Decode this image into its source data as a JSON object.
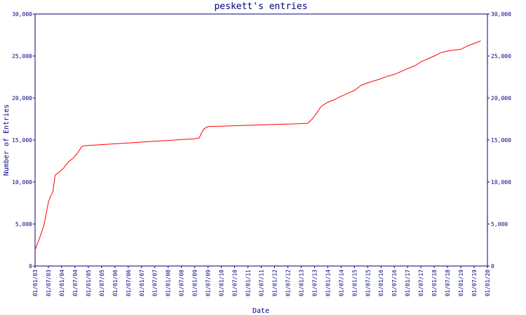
{
  "chart_data": {
    "type": "line",
    "title": "peskett's entries",
    "xlabel": "Date",
    "ylabel": "Number of Entries",
    "ylim": [
      0,
      30000
    ],
    "y_ticks": [
      0,
      5000,
      10000,
      15000,
      20000,
      25000,
      30000
    ],
    "y_tick_labels": [
      "0",
      "5,000",
      "10,000",
      "15,000",
      "20,000",
      "25,000",
      "30,000"
    ],
    "x_tick_labels": [
      "01/01/03",
      "01/07/03",
      "01/01/04",
      "01/07/04",
      "01/01/05",
      "01/07/05",
      "01/01/06",
      "01/07/06",
      "01/01/07",
      "01/07/07",
      "01/01/08",
      "01/07/08",
      "01/01/09",
      "01/07/09",
      "01/01/10",
      "01/07/10",
      "01/01/11",
      "01/07/11",
      "01/01/12",
      "01/07/12",
      "01/01/13",
      "01/07/13",
      "01/01/14",
      "01/07/14",
      "01/01/15",
      "01/07/15",
      "01/01/16",
      "01/07/16",
      "01/01/17",
      "01/07/17",
      "01/01/18",
      "01/07/18",
      "01/01/19",
      "01/07/19",
      "01/01/20"
    ],
    "grid": false,
    "line_color": "#ff0000",
    "axis_color": "#000080",
    "series": [
      {
        "x": [
          "01/01/03",
          "01/03/03",
          "01/05/03",
          "01/07/03",
          "01/08/03",
          "01/09/03",
          "01/10/03",
          "01/12/03",
          "01/02/04",
          "01/04/04",
          "01/06/04",
          "01/08/04",
          "01/10/04",
          "01/11/04",
          "01/01/05",
          "01/07/05",
          "01/01/06",
          "01/07/06",
          "01/01/07",
          "01/07/07",
          "01/01/08",
          "01/07/08",
          "01/01/09",
          "01/03/09",
          "01/05/09",
          "01/07/09",
          "01/01/10",
          "01/07/10",
          "01/01/11",
          "01/07/11",
          "01/01/12",
          "01/07/12",
          "01/01/13",
          "01/04/13",
          "01/06/13",
          "01/08/13",
          "01/10/13",
          "01/01/14",
          "01/04/14",
          "01/07/14",
          "01/01/15",
          "01/04/15",
          "01/07/15",
          "01/01/16",
          "01/04/16",
          "01/07/16",
          "01/01/17",
          "01/04/17",
          "01/07/17",
          "01/01/18",
          "01/04/18",
          "01/07/18",
          "01/01/19",
          "01/04/19",
          "01/07/19",
          "01/10/19"
        ],
        "y": [
          1900,
          3300,
          4800,
          7600,
          8300,
          8800,
          10800,
          11200,
          11700,
          12400,
          12800,
          13400,
          14200,
          14300,
          14350,
          14450,
          14550,
          14650,
          14750,
          14850,
          14950,
          15050,
          15150,
          15250,
          16300,
          16600,
          16650,
          16700,
          16750,
          16800,
          16850,
          16900,
          16950,
          17000,
          17500,
          18200,
          19000,
          19500,
          19800,
          20200,
          20900,
          21500,
          21800,
          22300,
          22600,
          22800,
          23500,
          23800,
          24300,
          25000,
          25400,
          25600,
          25800,
          26200,
          26500,
          26800
        ]
      }
    ]
  }
}
